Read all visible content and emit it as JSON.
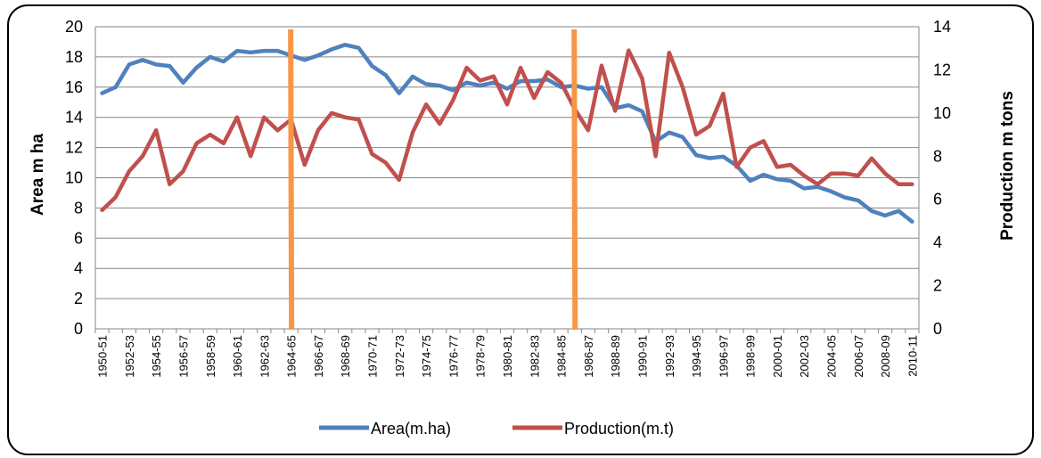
{
  "chart_data": {
    "type": "line",
    "title": "",
    "ylabel_left": "Area m ha",
    "ylabel_right": "Production m tons",
    "ylim_left": [
      0,
      20
    ],
    "ylim_right": [
      0,
      14
    ],
    "yticks_left": [
      0,
      2,
      4,
      6,
      8,
      10,
      12,
      14,
      16,
      18,
      20
    ],
    "yticks_right": [
      0,
      2,
      4,
      6,
      8,
      10,
      12,
      14
    ],
    "grid": true,
    "legend_position": "bottom",
    "x": [
      "1950-51",
      "1951-52",
      "1952-53",
      "1953-54",
      "1954-55",
      "1955-56",
      "1956-57",
      "1957-58",
      "1958-59",
      "1959-60",
      "1960-61",
      "1961-62",
      "1962-63",
      "1963-64",
      "1964-65",
      "1965-66",
      "1966-67",
      "1967-68",
      "1968-69",
      "1969-70",
      "1970-71",
      "1971-72",
      "1972-73",
      "1973-74",
      "1974-75",
      "1975-76",
      "1976-77",
      "1977-78",
      "1978-79",
      "1979-80",
      "1980-81",
      "1981-82",
      "1982-83",
      "1983-84",
      "1984-85",
      "1985-86",
      "1986-87",
      "1987-88",
      "1988-89",
      "1989-90",
      "1990-91",
      "1991-92",
      "1992-93",
      "1993-94",
      "1994-95",
      "1995-96",
      "1996-97",
      "1997-98",
      "1998-99",
      "1999-00",
      "2000-01",
      "2001-02",
      "2002-03",
      "2003-04",
      "2004-05",
      "2005-06",
      "2006-07",
      "2007-08",
      "2008-09",
      "2009-10",
      "2010-11"
    ],
    "x_tick_labels": [
      "1950-51",
      "1952-53",
      "1954-55",
      "1956-57",
      "1958-59",
      "1960-61",
      "1962-63",
      "1964-65",
      "1966-67",
      "1968-69",
      "1970-71",
      "1972-73",
      "1974-75",
      "1976-77",
      "1978-79",
      "1980-81",
      "1982-83",
      "1984-85",
      "1986-87",
      "1988-89",
      "1990-91",
      "1992-93",
      "1994-95",
      "1996-97",
      "1998-99",
      "2000-01",
      "2002-03",
      "2004-05",
      "2006-07",
      "2008-09",
      "2010-11"
    ],
    "series": [
      {
        "name": "Area(m.ha)",
        "axis": "left",
        "color": "#4f81bd",
        "values": [
          15.6,
          16.0,
          17.5,
          17.8,
          17.5,
          17.4,
          16.3,
          17.3,
          18.0,
          17.7,
          18.4,
          18.3,
          18.4,
          18.4,
          18.1,
          17.8,
          18.1,
          18.5,
          18.8,
          18.6,
          17.4,
          16.8,
          15.6,
          16.7,
          16.2,
          16.1,
          15.8,
          16.3,
          16.1,
          16.3,
          15.9,
          16.4,
          16.4,
          16.5,
          16.0,
          16.1,
          15.9,
          16.0,
          14.6,
          14.8,
          14.4,
          12.4,
          13.0,
          12.7,
          11.5,
          11.3,
          11.4,
          10.8,
          9.8,
          10.2,
          9.9,
          9.8,
          9.3,
          9.4,
          9.1,
          8.7,
          8.5,
          7.8,
          7.5,
          7.8,
          7.1
        ]
      },
      {
        "name": "Production(m.t)",
        "axis": "right",
        "color": "#c0504d",
        "values": [
          5.5,
          6.1,
          7.3,
          8.0,
          9.2,
          6.7,
          7.3,
          8.6,
          9.0,
          8.6,
          9.8,
          8.0,
          9.8,
          9.2,
          9.7,
          7.6,
          9.2,
          10.0,
          9.8,
          9.7,
          8.1,
          7.7,
          6.9,
          9.1,
          10.4,
          9.5,
          10.6,
          12.1,
          11.5,
          11.7,
          10.4,
          12.1,
          10.7,
          11.9,
          11.4,
          10.2,
          9.2,
          12.2,
          10.1,
          12.9,
          11.6,
          8.0,
          12.8,
          11.2,
          9.0,
          9.4,
          10.9,
          7.5,
          8.4,
          8.7,
          7.5,
          7.6,
          7.1,
          6.7,
          7.2,
          7.2,
          7.1,
          7.9,
          7.2,
          6.7,
          6.7
        ]
      }
    ],
    "annotations": [
      {
        "type": "vertical-line",
        "at": "1964-65",
        "color": "#f79646"
      },
      {
        "type": "vertical-line",
        "at": "1985-86",
        "color": "#f79646"
      }
    ]
  }
}
